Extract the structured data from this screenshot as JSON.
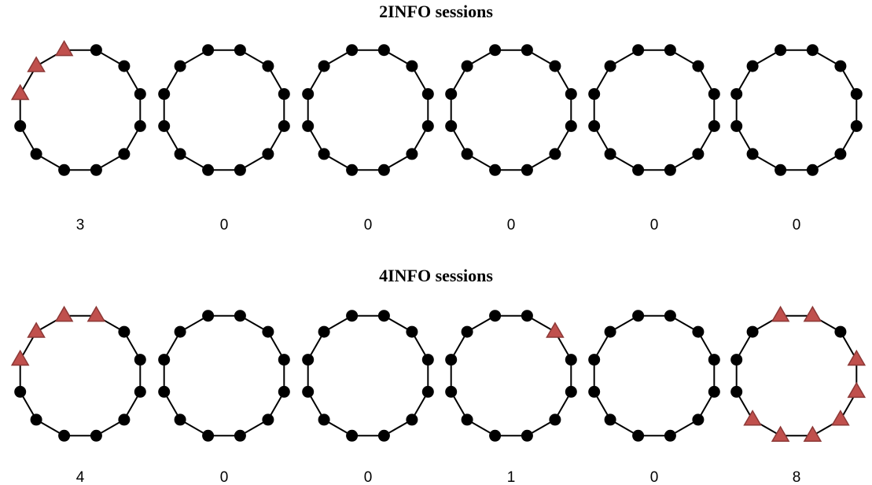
{
  "groups": [
    {
      "title": "2INFO sessions",
      "rings": [
        {
          "count": "3",
          "marked_nodes": [
            10,
            11,
            9
          ]
        },
        {
          "count": "0",
          "marked_nodes": []
        },
        {
          "count": "0",
          "marked_nodes": []
        },
        {
          "count": "0",
          "marked_nodes": []
        },
        {
          "count": "0",
          "marked_nodes": []
        },
        {
          "count": "0",
          "marked_nodes": []
        }
      ]
    },
    {
      "title": "4INFO sessions",
      "rings": [
        {
          "count": "4",
          "marked_nodes": [
            11,
            0,
            10,
            9
          ]
        },
        {
          "count": "0",
          "marked_nodes": []
        },
        {
          "count": "0",
          "marked_nodes": []
        },
        {
          "count": "1",
          "marked_nodes": [
            1
          ]
        },
        {
          "count": "0",
          "marked_nodes": []
        },
        {
          "count": "8",
          "marked_nodes": [
            0,
            11,
            2,
            3,
            4,
            5,
            6,
            7
          ]
        }
      ]
    }
  ],
  "node_count": 12,
  "colors": {
    "node": "#000000",
    "edge": "#000000",
    "marker_fill": "#c0504d",
    "marker_stroke": "#8c3836"
  },
  "marker_shape": "triangle"
}
